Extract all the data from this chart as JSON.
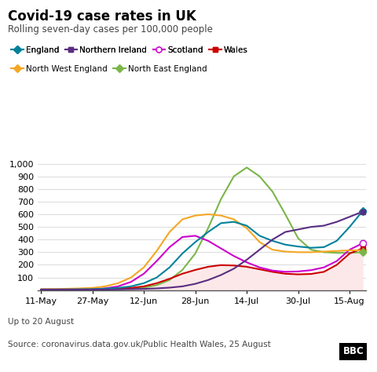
{
  "title": "Covid-19 case rates in UK",
  "subtitle": "Rolling seven-day cases per 100,000 people",
  "footer1": "Up to 20 August",
  "footer2": "Source: coronavirus.data.gov.uk/Public Health Wales, 25 August",
  "xtick_labels": [
    "11-May",
    "27-May",
    "12-Jun",
    "28-Jun",
    "14-Jul",
    "30-Jul",
    "15-Aug"
  ],
  "xtick_days": [
    0,
    16,
    32,
    48,
    64,
    80,
    96
  ],
  "ylim": [
    0,
    1000
  ],
  "yticks": [
    0,
    100,
    200,
    300,
    400,
    500,
    600,
    700,
    800,
    900,
    1000
  ],
  "series": {
    "England": {
      "color": "#00829b",
      "marker": "D",
      "zorder": 4,
      "data": [
        [
          0,
          5
        ],
        [
          4,
          5
        ],
        [
          8,
          6
        ],
        [
          12,
          7
        ],
        [
          16,
          8
        ],
        [
          20,
          12
        ],
        [
          24,
          18
        ],
        [
          28,
          30
        ],
        [
          32,
          55
        ],
        [
          36,
          100
        ],
        [
          40,
          180
        ],
        [
          44,
          290
        ],
        [
          48,
          380
        ],
        [
          52,
          460
        ],
        [
          56,
          530
        ],
        [
          60,
          540
        ],
        [
          64,
          510
        ],
        [
          68,
          430
        ],
        [
          72,
          390
        ],
        [
          76,
          360
        ],
        [
          80,
          345
        ],
        [
          84,
          335
        ],
        [
          88,
          340
        ],
        [
          92,
          390
        ],
        [
          96,
          500
        ],
        [
          100,
          625
        ]
      ]
    },
    "North West England": {
      "color": "#f5a623",
      "marker": "D",
      "zorder": 4,
      "data": [
        [
          0,
          8
        ],
        [
          4,
          9
        ],
        [
          8,
          11
        ],
        [
          12,
          14
        ],
        [
          16,
          18
        ],
        [
          20,
          30
        ],
        [
          24,
          55
        ],
        [
          28,
          100
        ],
        [
          32,
          180
        ],
        [
          36,
          310
        ],
        [
          40,
          460
        ],
        [
          44,
          560
        ],
        [
          48,
          590
        ],
        [
          52,
          600
        ],
        [
          56,
          590
        ],
        [
          60,
          560
        ],
        [
          64,
          490
        ],
        [
          68,
          380
        ],
        [
          72,
          320
        ],
        [
          76,
          305
        ],
        [
          80,
          300
        ],
        [
          84,
          300
        ],
        [
          88,
          305
        ],
        [
          92,
          310
        ],
        [
          96,
          315
        ],
        [
          100,
          315
        ]
      ]
    },
    "Northern Ireland": {
      "color": "#5a2d82",
      "marker": "s",
      "zorder": 5,
      "data": [
        [
          0,
          5
        ],
        [
          4,
          5
        ],
        [
          8,
          5
        ],
        [
          12,
          5
        ],
        [
          16,
          5
        ],
        [
          20,
          5
        ],
        [
          24,
          6
        ],
        [
          28,
          8
        ],
        [
          32,
          10
        ],
        [
          36,
          14
        ],
        [
          40,
          20
        ],
        [
          44,
          30
        ],
        [
          48,
          50
        ],
        [
          52,
          80
        ],
        [
          56,
          120
        ],
        [
          60,
          170
        ],
        [
          64,
          240
        ],
        [
          68,
          320
        ],
        [
          72,
          400
        ],
        [
          76,
          460
        ],
        [
          80,
          480
        ],
        [
          84,
          500
        ],
        [
          88,
          510
        ],
        [
          92,
          540
        ],
        [
          96,
          580
        ],
        [
          100,
          620
        ]
      ]
    },
    "Scotland": {
      "color": "#cc00cc",
      "marker": "o",
      "open": true,
      "zorder": 4,
      "data": [
        [
          0,
          5
        ],
        [
          4,
          5
        ],
        [
          8,
          5
        ],
        [
          12,
          6
        ],
        [
          16,
          8
        ],
        [
          20,
          14
        ],
        [
          24,
          30
        ],
        [
          28,
          65
        ],
        [
          32,
          130
        ],
        [
          36,
          230
        ],
        [
          40,
          340
        ],
        [
          44,
          420
        ],
        [
          48,
          430
        ],
        [
          52,
          390
        ],
        [
          56,
          330
        ],
        [
          60,
          270
        ],
        [
          64,
          220
        ],
        [
          68,
          180
        ],
        [
          72,
          155
        ],
        [
          76,
          145
        ],
        [
          80,
          148
        ],
        [
          84,
          158
        ],
        [
          88,
          180
        ],
        [
          92,
          230
        ],
        [
          96,
          320
        ],
        [
          100,
          370
        ]
      ]
    },
    "Wales": {
      "color": "#cc0000",
      "marker": "s",
      "zorder": 4,
      "fill": true,
      "data": [
        [
          0,
          3
        ],
        [
          4,
          3
        ],
        [
          8,
          4
        ],
        [
          12,
          5
        ],
        [
          16,
          6
        ],
        [
          20,
          8
        ],
        [
          24,
          12
        ],
        [
          28,
          18
        ],
        [
          32,
          30
        ],
        [
          36,
          55
        ],
        [
          40,
          90
        ],
        [
          44,
          130
        ],
        [
          48,
          160
        ],
        [
          52,
          185
        ],
        [
          56,
          198
        ],
        [
          60,
          195
        ],
        [
          64,
          185
        ],
        [
          68,
          165
        ],
        [
          72,
          145
        ],
        [
          76,
          130
        ],
        [
          80,
          125
        ],
        [
          84,
          128
        ],
        [
          88,
          145
        ],
        [
          92,
          200
        ],
        [
          96,
          290
        ],
        [
          100,
          330
        ]
      ]
    },
    "North East England": {
      "color": "#7ab648",
      "marker": "D",
      "zorder": 3,
      "data": [
        [
          0,
          5
        ],
        [
          4,
          5
        ],
        [
          8,
          5
        ],
        [
          12,
          5
        ],
        [
          16,
          5
        ],
        [
          20,
          6
        ],
        [
          24,
          8
        ],
        [
          28,
          12
        ],
        [
          32,
          20
        ],
        [
          36,
          40
        ],
        [
          40,
          80
        ],
        [
          44,
          160
        ],
        [
          48,
          290
        ],
        [
          52,
          490
        ],
        [
          56,
          720
        ],
        [
          60,
          900
        ],
        [
          64,
          970
        ],
        [
          68,
          900
        ],
        [
          72,
          780
        ],
        [
          76,
          600
        ],
        [
          80,
          410
        ],
        [
          84,
          320
        ],
        [
          88,
          300
        ],
        [
          92,
          295
        ],
        [
          96,
          295
        ],
        [
          100,
          300
        ]
      ]
    }
  },
  "wales_fill_color": "#fce8e8",
  "background_color": "#ffffff",
  "grid_color": "#dddddd"
}
